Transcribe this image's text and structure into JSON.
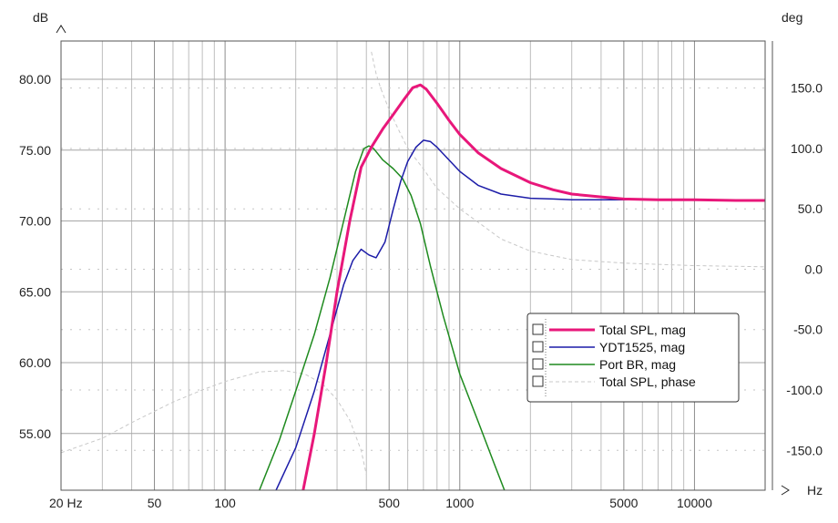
{
  "chart_data": {
    "type": "line",
    "x_scale": "log",
    "grid": true,
    "legend_position": "right-middle",
    "xlim": [
      20,
      20000
    ],
    "ylim_left": [
      51,
      82.7
    ],
    "ylim_right": [
      -183,
      189
    ],
    "x_unit": "Hz",
    "y_left_unit": "dB",
    "y_right_unit": "deg",
    "x_ticks": [
      {
        "value": 20,
        "label": "20 Hz"
      },
      {
        "value": 50,
        "label": "50"
      },
      {
        "value": 100,
        "label": "100"
      },
      {
        "value": 500,
        "label": "500"
      },
      {
        "value": 1000,
        "label": "1000"
      },
      {
        "value": 5000,
        "label": "5000"
      },
      {
        "value": 10000,
        "label": "10000"
      }
    ],
    "y_left_ticks": [
      {
        "value": 80,
        "label": "80.00"
      },
      {
        "value": 75,
        "label": "75.00"
      },
      {
        "value": 70,
        "label": "70.00"
      },
      {
        "value": 65,
        "label": "65.00"
      },
      {
        "value": 60,
        "label": "60.00"
      },
      {
        "value": 55,
        "label": "55.00"
      }
    ],
    "y_right_ticks": [
      {
        "value": 150,
        "label": "150.0"
      },
      {
        "value": 100,
        "label": "100.0"
      },
      {
        "value": 50,
        "label": "50.0"
      },
      {
        "value": 0,
        "label": "0.0"
      },
      {
        "value": -50,
        "label": "-50.0"
      },
      {
        "value": -100,
        "label": "-100.0"
      },
      {
        "value": -150,
        "label": "-150.0"
      }
    ],
    "series": [
      {
        "name": "Total SPL, mag",
        "color": "#e8177a",
        "width": 3,
        "dashed": false,
        "axis": "left",
        "x": [
          215,
          240,
          270,
          300,
          340,
          380,
          420,
          470,
          520,
          580,
          630,
          680,
          720,
          800,
          900,
          1000,
          1200,
          1500,
          2000,
          2500,
          3000,
          4000,
          5000,
          7000,
          10000,
          15000,
          20000
        ],
        "y": [
          51,
          55,
          60,
          65,
          70,
          73.8,
          75.2,
          76.5,
          77.5,
          78.6,
          79.4,
          79.6,
          79.3,
          78.3,
          77.1,
          76.1,
          74.8,
          73.7,
          72.7,
          72.2,
          71.9,
          71.7,
          71.55,
          71.5,
          71.5,
          71.45,
          71.45
        ]
      },
      {
        "name": "YDT1525, mag",
        "color": "#1c1ca8",
        "width": 1.5,
        "dashed": false,
        "axis": "left",
        "x": [
          165,
          200,
          240,
          280,
          320,
          350,
          380,
          410,
          440,
          480,
          520,
          560,
          600,
          650,
          700,
          750,
          800,
          900,
          1000,
          1200,
          1500,
          2000,
          2500,
          3000,
          4000,
          5000,
          7000,
          10000,
          13000
        ],
        "y": [
          51,
          54,
          58,
          62,
          65.5,
          67.2,
          68,
          67.6,
          67.4,
          68.5,
          70.8,
          72.8,
          74.2,
          75.2,
          75.7,
          75.6,
          75.2,
          74.3,
          73.5,
          72.5,
          71.9,
          71.6,
          71.55,
          71.5,
          71.5,
          71.5,
          71.5,
          71.5,
          71.5
        ]
      },
      {
        "name": "Port BR, mag",
        "color": "#1e8a1e",
        "width": 1.5,
        "dashed": false,
        "axis": "left",
        "x": [
          140,
          170,
          200,
          240,
          280,
          320,
          360,
          390,
          410,
          430,
          470,
          520,
          570,
          620,
          680,
          750,
          850,
          1000,
          1200,
          1400,
          1550
        ],
        "y": [
          51,
          54.5,
          58,
          62,
          66,
          70,
          73.5,
          75.1,
          75.3,
          75.1,
          74.3,
          73.7,
          73,
          71.8,
          69.8,
          66.8,
          63.3,
          59.2,
          55.8,
          52.9,
          51
        ]
      },
      {
        "name": "Total SPL, phase",
        "color": "#c8c8c8",
        "width": 1,
        "dashed": true,
        "axis": "right",
        "x": [
          20,
          30,
          40,
          60,
          80,
          100,
          140,
          180,
          220,
          260,
          300,
          340,
          380,
          400,
          420,
          440,
          460,
          500,
          550,
          600,
          700,
          800,
          1000,
          1500,
          2000,
          3000,
          5000,
          10000,
          20000
        ],
        "y": [
          -152,
          -140,
          -127,
          -110,
          -100,
          -93,
          -85,
          -84,
          -87,
          -95,
          -108,
          -125,
          -150,
          -170,
          180,
          162,
          150,
          132,
          115,
          100,
          83,
          67,
          50,
          25,
          15,
          8,
          5,
          3,
          2
        ]
      }
    ]
  },
  "legend": {
    "items": [
      {
        "label": "Total SPL, mag",
        "color": "#e8177a"
      },
      {
        "label": "YDT1525, mag",
        "color": "#1c1ca8"
      },
      {
        "label": "Port BR, mag",
        "color": "#1e8a1e"
      },
      {
        "label": "Total SPL, phase",
        "color": "#c8c8c8"
      }
    ]
  }
}
